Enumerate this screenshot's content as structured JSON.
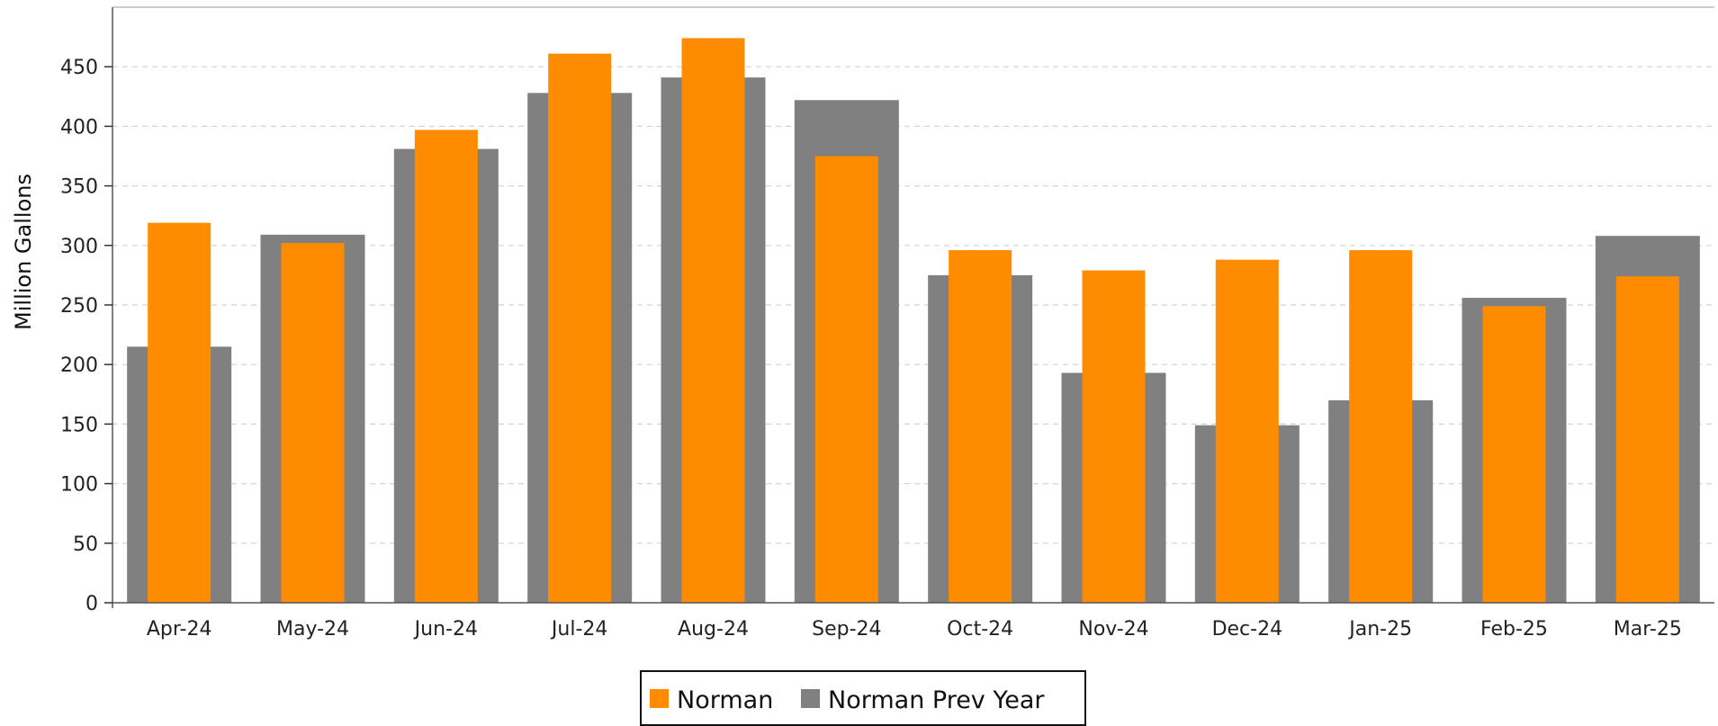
{
  "chart_data": {
    "type": "bar",
    "title": "",
    "xlabel": "",
    "ylabel": "Million Gallons",
    "ylim": [
      0,
      500
    ],
    "yticks": [
      0,
      50,
      100,
      150,
      200,
      250,
      300,
      350,
      400,
      450
    ],
    "grid": true,
    "legend_position": "bottom-center",
    "categories": [
      "Apr-24",
      "May-24",
      "Jun-24",
      "Jul-24",
      "Aug-24",
      "Sep-24",
      "Oct-24",
      "Nov-24",
      "Dec-24",
      "Jan-25",
      "Feb-25",
      "Mar-25"
    ],
    "series": [
      {
        "name": "Norman Prev Year",
        "color": "#808080",
        "values": [
          215,
          309,
          381,
          428,
          441,
          422,
          275,
          193,
          149,
          170,
          256,
          308
        ]
      },
      {
        "name": "Norman",
        "color": "#FF8C00",
        "values": [
          319,
          302,
          397,
          461,
          474,
          375,
          296,
          279,
          288,
          296,
          249,
          274
        ]
      }
    ]
  }
}
